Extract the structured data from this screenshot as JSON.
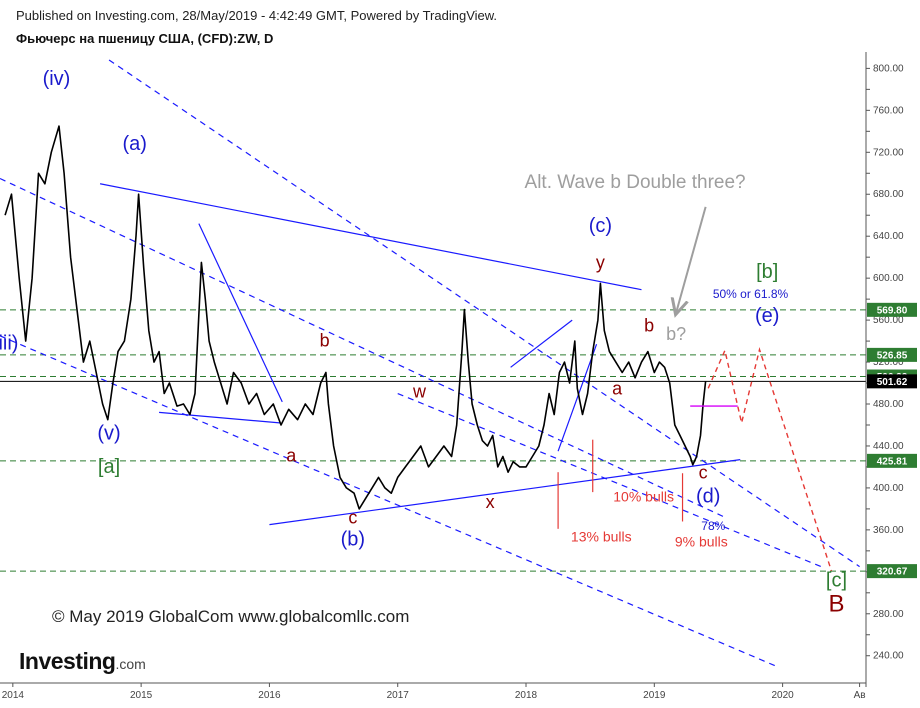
{
  "header": {
    "published": "Published on Investing.com, 28/May/2019 - 4:42:49 GMT, Powered by TradingView.",
    "instrument": "Фьючерс на пшеницу США, (CFD):ZW, D"
  },
  "footer": {
    "copyright": "© May 2019 GlobalCom www.globalcomllc.com",
    "logo_text": "Investing",
    "logo_suffix": ".com"
  },
  "chart_data": {
    "type": "line",
    "x_axis": {
      "ticks": [
        "2014",
        "2015",
        "2016",
        "2017",
        "2018",
        "2019",
        "2020",
        "Ав"
      ],
      "tick_positions": [
        2014.0,
        2015.0,
        2016.0,
        2017.0,
        2018.0,
        2019.0,
        2020.0,
        2020.6
      ],
      "range": [
        2013.9,
        2020.65
      ]
    },
    "y_axis": {
      "ticks": [
        240,
        260,
        280,
        300,
        320,
        340,
        360,
        380,
        400,
        420,
        440,
        460,
        480,
        500,
        520,
        540,
        560,
        580,
        600,
        620,
        640,
        660,
        680,
        700,
        720,
        740,
        760,
        780,
        800
      ],
      "labeled_ticks": [
        "240.00",
        "280.00",
        "320.00",
        "360.00",
        "400.00",
        "440.00",
        "480.00",
        "520.00",
        "560.00",
        "600.00",
        "640.00",
        "680.00",
        "720.00",
        "760.00",
        "800.00"
      ],
      "range": [
        214,
        808
      ],
      "side": "right"
    },
    "grid": false,
    "colors": {
      "price": "#000000",
      "channel": "#1a1aff",
      "level": "#2e7d32",
      "red": "#e53935",
      "wave_blue": "#1a1acc",
      "wave_red": "#8b0000",
      "wave_green": "#2e7d32",
      "gray": "#9e9e9e",
      "magenta": "#d500f9"
    },
    "series": [
      {
        "values": [
          [
            2013.94,
            660
          ],
          [
            2013.99,
            680
          ],
          [
            2014.05,
            600
          ],
          [
            2014.1,
            540
          ],
          [
            2014.15,
            600
          ],
          [
            2014.2,
            700
          ],
          [
            2014.25,
            690
          ],
          [
            2014.3,
            720
          ],
          [
            2014.36,
            745
          ],
          [
            2014.4,
            700
          ],
          [
            2014.45,
            620
          ],
          [
            2014.5,
            570
          ],
          [
            2014.55,
            520
          ],
          [
            2014.6,
            540
          ],
          [
            2014.65,
            510
          ],
          [
            2014.7,
            480
          ],
          [
            2014.74,
            465
          ],
          [
            2014.78,
            500
          ],
          [
            2014.82,
            530
          ],
          [
            2014.87,
            540
          ],
          [
            2014.92,
            580
          ],
          [
            2014.96,
            640
          ],
          [
            2014.98,
            680
          ],
          [
            2015.02,
            610
          ],
          [
            2015.06,
            550
          ],
          [
            2015.1,
            520
          ],
          [
            2015.14,
            530
          ],
          [
            2015.18,
            490
          ],
          [
            2015.22,
            500
          ],
          [
            2015.28,
            478
          ],
          [
            2015.33,
            480
          ],
          [
            2015.38,
            470
          ],
          [
            2015.42,
            490
          ],
          [
            2015.47,
            615
          ],
          [
            2015.5,
            580
          ],
          [
            2015.53,
            540
          ],
          [
            2015.57,
            520
          ],
          [
            2015.62,
            500
          ],
          [
            2015.67,
            480
          ],
          [
            2015.72,
            510
          ],
          [
            2015.78,
            500
          ],
          [
            2015.84,
            480
          ],
          [
            2015.9,
            490
          ],
          [
            2015.96,
            470
          ],
          [
            2016.03,
            480
          ],
          [
            2016.09,
            460
          ],
          [
            2016.15,
            475
          ],
          [
            2016.22,
            465
          ],
          [
            2016.28,
            480
          ],
          [
            2016.34,
            470
          ],
          [
            2016.4,
            500
          ],
          [
            2016.44,
            510
          ],
          [
            2016.46,
            480
          ],
          [
            2016.5,
            440
          ],
          [
            2016.55,
            410
          ],
          [
            2016.6,
            400
          ],
          [
            2016.66,
            395
          ],
          [
            2016.7,
            380
          ],
          [
            2016.75,
            390
          ],
          [
            2016.8,
            400
          ],
          [
            2016.85,
            410
          ],
          [
            2016.9,
            400
          ],
          [
            2016.95,
            395
          ],
          [
            2017.0,
            410
          ],
          [
            2017.06,
            420
          ],
          [
            2017.12,
            430
          ],
          [
            2017.18,
            440
          ],
          [
            2017.24,
            420
          ],
          [
            2017.3,
            430
          ],
          [
            2017.36,
            440
          ],
          [
            2017.42,
            430
          ],
          [
            2017.46,
            460
          ],
          [
            2017.5,
            530
          ],
          [
            2017.52,
            570
          ],
          [
            2017.55,
            520
          ],
          [
            2017.58,
            480
          ],
          [
            2017.62,
            460
          ],
          [
            2017.66,
            445
          ],
          [
            2017.7,
            440
          ],
          [
            2017.74,
            450
          ],
          [
            2017.78,
            420
          ],
          [
            2017.82,
            430
          ],
          [
            2017.86,
            415
          ],
          [
            2017.9,
            425
          ],
          [
            2017.95,
            420
          ],
          [
            2018.0,
            420
          ],
          [
            2018.05,
            430
          ],
          [
            2018.1,
            440
          ],
          [
            2018.14,
            460
          ],
          [
            2018.18,
            490
          ],
          [
            2018.22,
            470
          ],
          [
            2018.26,
            510
          ],
          [
            2018.3,
            520
          ],
          [
            2018.34,
            500
          ],
          [
            2018.38,
            540
          ],
          [
            2018.4,
            495
          ],
          [
            2018.44,
            470
          ],
          [
            2018.48,
            490
          ],
          [
            2018.52,
            530
          ],
          [
            2018.56,
            560
          ],
          [
            2018.58,
            595
          ],
          [
            2018.61,
            550
          ],
          [
            2018.65,
            530
          ],
          [
            2018.7,
            520
          ],
          [
            2018.75,
            510
          ],
          [
            2018.8,
            520
          ],
          [
            2018.85,
            505
          ],
          [
            2018.9,
            520
          ],
          [
            2018.95,
            530
          ],
          [
            2019.0,
            510
          ],
          [
            2019.04,
            520
          ],
          [
            2019.08,
            515
          ],
          [
            2019.12,
            500
          ],
          [
            2019.16,
            460
          ],
          [
            2019.2,
            450
          ],
          [
            2019.24,
            440
          ],
          [
            2019.28,
            430
          ],
          [
            2019.3,
            422
          ],
          [
            2019.33,
            430
          ],
          [
            2019.36,
            450
          ],
          [
            2019.38,
            480
          ],
          [
            2019.4,
            501.62
          ]
        ]
      }
    ],
    "price_levels": [
      {
        "value": 569.8,
        "label": "569.80"
      },
      {
        "value": 526.85,
        "label": "526.85"
      },
      {
        "value": 506.22,
        "label": "506.22"
      },
      {
        "value": 425.81,
        "label": "425.81"
      },
      {
        "value": 320.67,
        "label": "320.67"
      }
    ],
    "last_price": {
      "value": 501.62,
      "label": "501.62"
    },
    "channel_lines": [
      {
        "style": "dashed",
        "from": [
          2014.75,
          808
        ],
        "to": [
          2020.6,
          325
        ]
      },
      {
        "style": "dashed",
        "from": [
          2013.9,
          695
        ],
        "to": [
          2019.55,
          372
        ]
      },
      {
        "style": "dashed",
        "from": [
          2013.9,
          545
        ],
        "to": [
          2019.95,
          230
        ]
      },
      {
        "style": "dashed",
        "from": [
          2017.0,
          490
        ],
        "to": [
          2020.3,
          325
        ]
      },
      {
        "style": "solid",
        "from": [
          2014.68,
          690
        ],
        "to": [
          2018.9,
          589
        ]
      },
      {
        "style": "solid",
        "from": [
          2016.0,
          365
        ],
        "to": [
          2019.67,
          427
        ]
      },
      {
        "style": "solid",
        "from": [
          2015.14,
          472
        ],
        "to": [
          2016.08,
          462
        ]
      },
      {
        "style": "solid",
        "from": [
          2015.45,
          652
        ],
        "to": [
          2016.1,
          482
        ]
      },
      {
        "style": "solid",
        "from": [
          2017.88,
          515
        ],
        "to": [
          2018.36,
          560
        ]
      },
      {
        "style": "solid",
        "from": [
          2018.25,
          435
        ],
        "to": [
          2018.55,
          537
        ]
      }
    ],
    "sentiment_markers": [
      {
        "x": 2018.25,
        "from": 415,
        "to": 361,
        "text": "13% bulls",
        "label_at": [
          2018.35,
          349
        ]
      },
      {
        "x": 2018.52,
        "from": 446,
        "to": 396,
        "text": "10% bulls",
        "label_at": [
          2018.68,
          387
        ]
      },
      {
        "x": 2019.22,
        "from": 414,
        "to": 368,
        "text": "9% bulls",
        "label_at": [
          2019.16,
          344
        ]
      }
    ],
    "projection_paths": [
      {
        "style": "dashed",
        "color": "red",
        "points": [
          [
            2019.42,
            495
          ],
          [
            2019.55,
            531
          ],
          [
            2019.68,
            462
          ],
          [
            2019.82,
            532
          ],
          [
            2020.38,
            321
          ]
        ]
      },
      {
        "style": "solid",
        "color": "magenta",
        "points": [
          [
            2019.28,
            478
          ],
          [
            2019.65,
            478
          ]
        ]
      }
    ],
    "wave_labels": [
      {
        "text": "(iv)",
        "x": 2014.34,
        "y": 784,
        "color": "blue",
        "size": 20
      },
      {
        "text": "(a)",
        "x": 2014.95,
        "y": 722,
        "color": "blue",
        "size": 20
      },
      {
        "text": "(iii)",
        "x": 2013.94,
        "y": 532,
        "color": "blue",
        "size": 20
      },
      {
        "text": "(v)",
        "x": 2014.75,
        "y": 446,
        "color": "blue",
        "size": 20
      },
      {
        "text": "[a]",
        "x": 2014.75,
        "y": 414,
        "color": "green",
        "size": 20
      },
      {
        "text": "b",
        "x": 2016.43,
        "y": 535,
        "color": "red",
        "size": 18
      },
      {
        "text": "a",
        "x": 2016.17,
        "y": 425,
        "color": "red",
        "size": 18
      },
      {
        "text": "c",
        "x": 2016.65,
        "y": 366,
        "color": "red",
        "size": 18
      },
      {
        "text": "(b)",
        "x": 2016.65,
        "y": 345,
        "color": "blue",
        "size": 20
      },
      {
        "text": "w",
        "x": 2017.17,
        "y": 486,
        "color": "red",
        "size": 18
      },
      {
        "text": "x",
        "x": 2017.72,
        "y": 381,
        "color": "red",
        "size": 18
      },
      {
        "text": "(c)",
        "x": 2018.58,
        "y": 644,
        "color": "blue",
        "size": 20
      },
      {
        "text": "y",
        "x": 2018.58,
        "y": 609,
        "color": "red",
        "size": 18
      },
      {
        "text": "Alt. Wave b Double three?",
        "x": 2018.85,
        "y": 686,
        "color": "gray",
        "size": 19
      },
      {
        "text": "b",
        "x": 2018.96,
        "y": 549,
        "color": "red",
        "size": 18
      },
      {
        "text": "b?",
        "x": 2019.17,
        "y": 541,
        "color": "gray",
        "size": 18
      },
      {
        "text": "a",
        "x": 2018.71,
        "y": 489,
        "color": "red",
        "size": 18
      },
      {
        "text": "[b]",
        "x": 2019.88,
        "y": 600,
        "color": "green",
        "size": 20
      },
      {
        "text": "50% or 61.8%",
        "x": 2019.75,
        "y": 581,
        "color": "blue",
        "size": 12
      },
      {
        "text": "(e)",
        "x": 2019.88,
        "y": 558,
        "color": "blue",
        "size": 20
      },
      {
        "text": "c",
        "x": 2019.38,
        "y": 409,
        "color": "red",
        "size": 18
      },
      {
        "text": "(d)",
        "x": 2019.42,
        "y": 386,
        "color": "blue",
        "size": 20
      },
      {
        "text": "78%",
        "x": 2019.46,
        "y": 360,
        "color": "blue",
        "size": 12
      },
      {
        "text": "[c]",
        "x": 2020.42,
        "y": 306,
        "color": "green",
        "size": 20
      },
      {
        "text": "B",
        "x": 2020.42,
        "y": 282,
        "color": "red",
        "size": 24
      }
    ],
    "annotation_arrow": {
      "from": [
        2019.4,
        668
      ],
      "to": [
        2019.17,
        567
      ]
    }
  }
}
